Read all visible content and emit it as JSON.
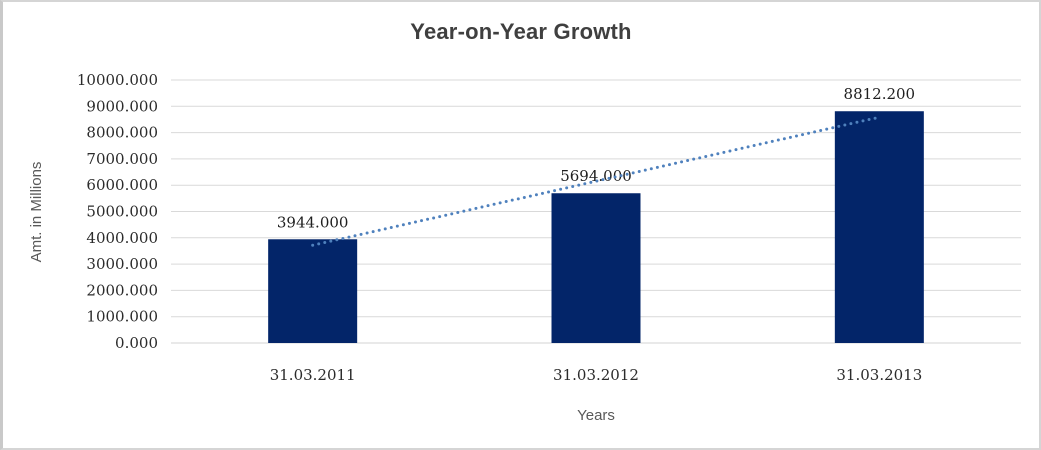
{
  "chart_data": {
    "type": "bar",
    "title": "Year-on-Year Growth",
    "xlabel": "Years",
    "ylabel": "Amt. in Millions",
    "categories": [
      "31.03.2011",
      "31.03.2012",
      "31.03.2013"
    ],
    "values": [
      3944.0,
      5694.0,
      8812.2
    ],
    "data_labels": [
      "3944.000",
      "5694.000",
      "8812.200"
    ],
    "y_ticks": [
      "0.000",
      "1000.000",
      "2000.000",
      "3000.000",
      "4000.000",
      "5000.000",
      "6000.000",
      "7000.000",
      "8000.000",
      "9000.000",
      "10000.000"
    ],
    "ylim": [
      0,
      10000
    ],
    "grid": true,
    "legend": false,
    "trendline": true,
    "colors": {
      "bar": "#032569",
      "trendline": "#4F81BD",
      "gridline": "#D9D9D9",
      "axis_line": "#D3D3D3",
      "title": "#3F3F3F",
      "tick_label": "#2B2B2B",
      "axis_title": "#595959"
    }
  }
}
